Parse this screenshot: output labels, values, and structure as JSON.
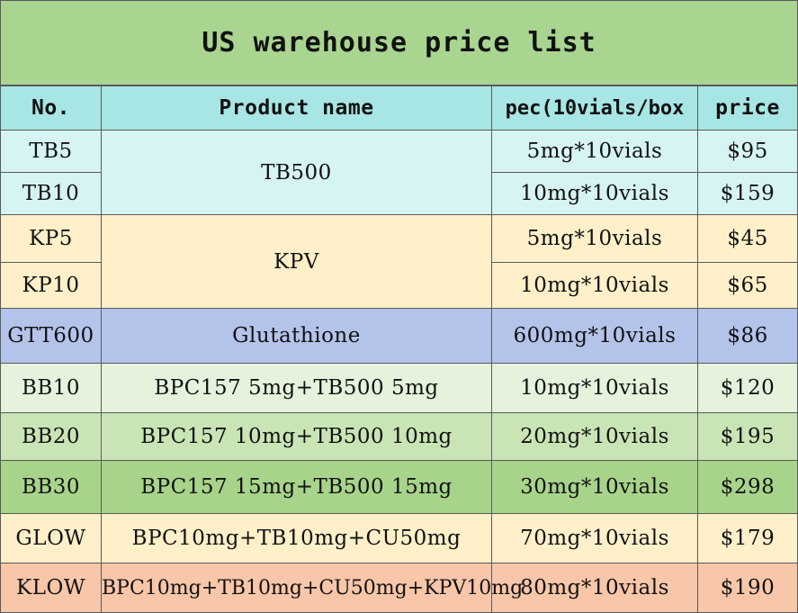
{
  "title": "US warehouse price list",
  "headers": {
    "no": "No.",
    "name": "Product name",
    "spec": "pec(10vials/box",
    "price": "price"
  },
  "rows": [
    {
      "no": "TB5",
      "name": "TB500",
      "spec": "5mg*10vials",
      "price": "$95"
    },
    {
      "no": "TB10",
      "name": "TB500",
      "spec": "10mg*10vials",
      "price": "$159"
    },
    {
      "no": "KP5",
      "name": "KPV",
      "spec": "5mg*10vials",
      "price": "$45"
    },
    {
      "no": "KP10",
      "name": "KPV",
      "spec": "10mg*10vials",
      "price": "$65"
    },
    {
      "no": "GTT600",
      "name": "Glutathione",
      "spec": "600mg*10vials",
      "price": "$86"
    },
    {
      "no": "BB10",
      "name": "BPC157 5mg+TB500 5mg",
      "spec": "10mg*10vials",
      "price": "$120"
    },
    {
      "no": "BB20",
      "name": "BPC157 10mg+TB500 10mg",
      "spec": "20mg*10vials",
      "price": "$195"
    },
    {
      "no": "BB30",
      "name": "BPC157 15mg+TB500 15mg",
      "spec": "30mg*10vials",
      "price": "$298"
    },
    {
      "no": "GLOW",
      "name": "BPC10mg+TB10mg+CU50mg",
      "spec": "70mg*10vials",
      "price": "$179"
    },
    {
      "no": "KLOW",
      "name": "BPC10mg+TB10mg+CU50mg+KPV10mg",
      "spec": "80mg*10vials",
      "price": "$190"
    }
  ],
  "colors": {
    "title_bg": "#a9d591",
    "header_bg": "#a7e6e4",
    "tb_bg": "#d5f4f3",
    "kp_bg": "#fff0c9",
    "gtt_bg": "#b3c3ea",
    "bb10_bg": "#e5f3dc",
    "bb20_bg": "#c9e5b6",
    "bb30_bg": "#a7d48a",
    "glow_bg": "#fff0c9",
    "klow_bg": "#f8c6a8"
  }
}
